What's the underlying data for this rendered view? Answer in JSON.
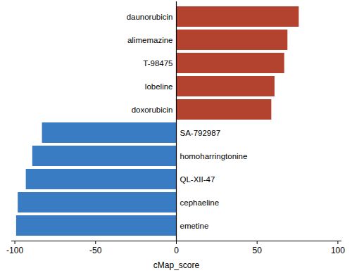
{
  "chart_data": {
    "type": "bar",
    "orientation": "horizontal",
    "categories": [
      "daunorubicin",
      "alimemazine",
      "T-98475",
      "lobeline",
      "doxorubicin",
      "SA-792987",
      "homoharringtonine",
      "QL-XII-47",
      "cephaeline",
      "emetine"
    ],
    "values": [
      76,
      69,
      67,
      61,
      59,
      -83,
      -89,
      -93,
      -98,
      -99
    ],
    "colors": [
      "#b3432f",
      "#b3432f",
      "#b3432f",
      "#b3432f",
      "#b3432f",
      "#3a7cc3",
      "#3a7cc3",
      "#3a7cc3",
      "#3a7cc3",
      "#3a7cc3"
    ],
    "x_label": "cMap_score",
    "xlim": [
      -102,
      102
    ],
    "xticks": [
      -100,
      -50,
      0,
      50,
      100
    ],
    "grid": false
  }
}
